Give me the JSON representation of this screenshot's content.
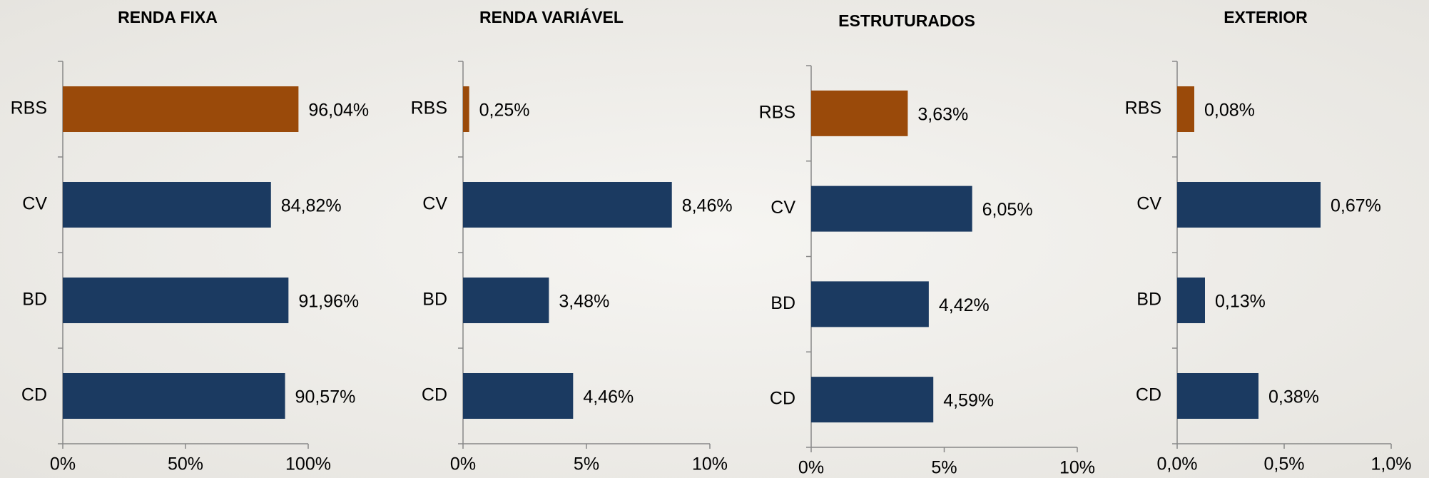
{
  "chart_data": [
    {
      "type": "bar",
      "title": "RENDA FIXA",
      "categories": [
        "RBS",
        "CV",
        "BD",
        "CD"
      ],
      "values": [
        96.04,
        84.82,
        91.96,
        90.57
      ],
      "value_labels": [
        "96,04%",
        "84,82%",
        "91,96%",
        "90,57%"
      ],
      "colors": [
        "#9a4a0a",
        "#1b3a61",
        "#1b3a61",
        "#1b3a61"
      ],
      "xlim": [
        0,
        100
      ],
      "xticks": [
        {
          "value": 0,
          "label": "0%"
        },
        {
          "value": 50,
          "label": "50%"
        },
        {
          "value": 100,
          "label": "100%"
        }
      ]
    },
    {
      "type": "bar",
      "title": "RENDA VARIÁVEL",
      "categories": [
        "RBS",
        "CV",
        "BD",
        "CD"
      ],
      "values": [
        0.25,
        8.46,
        3.48,
        4.46
      ],
      "value_labels": [
        "0,25%",
        "8,46%",
        "3,48%",
        "4,46%"
      ],
      "colors": [
        "#9a4a0a",
        "#1b3a61",
        "#1b3a61",
        "#1b3a61"
      ],
      "xlim": [
        0,
        10
      ],
      "xticks": [
        {
          "value": 0,
          "label": "0%"
        },
        {
          "value": 5,
          "label": "5%"
        },
        {
          "value": 10,
          "label": "10%"
        }
      ]
    },
    {
      "type": "bar",
      "title": "ESTRUTURADOS",
      "categories": [
        "RBS",
        "CV",
        "BD",
        "CD"
      ],
      "values": [
        3.63,
        6.05,
        4.42,
        4.59
      ],
      "value_labels": [
        "3,63%",
        "6,05%",
        "4,42%",
        "4,59%"
      ],
      "colors": [
        "#9a4a0a",
        "#1b3a61",
        "#1b3a61",
        "#1b3a61"
      ],
      "xlim": [
        0,
        10
      ],
      "xticks": [
        {
          "value": 0,
          "label": "0%"
        },
        {
          "value": 5,
          "label": "5%"
        },
        {
          "value": 10,
          "label": "10%"
        }
      ]
    },
    {
      "type": "bar",
      "title": "EXTERIOR",
      "categories": [
        "RBS",
        "CV",
        "BD",
        "CD"
      ],
      "values": [
        0.08,
        0.67,
        0.13,
        0.38
      ],
      "value_labels": [
        "0,08%",
        "0,67%",
        "0,13%",
        "0,38%"
      ],
      "colors": [
        "#9a4a0a",
        "#1b3a61",
        "#1b3a61",
        "#1b3a61"
      ],
      "xlim": [
        0,
        1
      ],
      "xticks": [
        {
          "value": 0,
          "label": "0,0%"
        },
        {
          "value": 0.5,
          "label": "0,5%"
        },
        {
          "value": 1,
          "label": "1,0%"
        }
      ]
    }
  ]
}
